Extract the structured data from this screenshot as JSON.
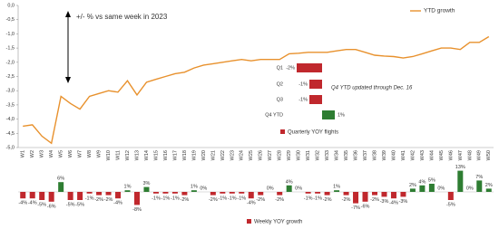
{
  "chart_data": [
    {
      "type": "line",
      "annotation": "+/- % vs same week in 2023",
      "categories": [
        "W1",
        "W2",
        "W3",
        "W4",
        "W5",
        "W6",
        "W7",
        "W8",
        "W9",
        "W10",
        "W11",
        "W12",
        "W13",
        "W14",
        "W15",
        "W16",
        "W17",
        "W18",
        "W19",
        "W20",
        "W21",
        "W22",
        "W23",
        "W24",
        "W25",
        "W26",
        "W27",
        "W28",
        "W29",
        "W30",
        "W31",
        "W32",
        "W33",
        "W34",
        "W35",
        "W36",
        "W37",
        "W38",
        "W39",
        "W40",
        "W41",
        "W42",
        "W43",
        "W44",
        "W45",
        "W46",
        "W47",
        "W48",
        "W49",
        "W50"
      ],
      "series": [
        {
          "name": "YTD growth",
          "color": "#e8912d",
          "values": [
            -4.25,
            -4.2,
            -4.6,
            -4.85,
            -3.2,
            -3.45,
            -3.65,
            -3.2,
            -3.1,
            -3.0,
            -3.05,
            -2.65,
            -3.15,
            -2.7,
            -2.6,
            -2.5,
            -2.4,
            -2.35,
            -2.2,
            -2.1,
            -2.05,
            -2.0,
            -1.95,
            -1.9,
            -1.95,
            -1.9,
            -1.9,
            -1.9,
            -1.7,
            -1.68,
            -1.65,
            -1.65,
            -1.65,
            -1.6,
            -1.55,
            -1.55,
            -1.65,
            -1.75,
            -1.78,
            -1.8,
            -1.85,
            -1.8,
            -1.7,
            -1.6,
            -1.5,
            -1.5,
            -1.55,
            -1.3,
            -1.3,
            -1.1
          ]
        }
      ],
      "ylim": [
        -5,
        0
      ],
      "yticks": [
        {
          "value": 0,
          "label": "0,0"
        },
        {
          "value": -0.5,
          "label": "-0,5"
        },
        {
          "value": -1,
          "label": "-1,0"
        },
        {
          "value": -1.5,
          "label": "-1,5"
        },
        {
          "value": -2,
          "label": "-2,0"
        },
        {
          "value": -2.5,
          "label": "-2,5"
        },
        {
          "value": -3,
          "label": "-3,0"
        },
        {
          "value": -3.5,
          "label": "-3,5"
        },
        {
          "value": -4,
          "label": "-4,0"
        },
        {
          "value": -4.5,
          "label": "-4,5"
        },
        {
          "value": -5,
          "label": "-5,0"
        }
      ],
      "legend": "top-right"
    },
    {
      "type": "hbar",
      "annotation": "Q4 YTD updated through Dec. 16",
      "categories": [
        "Q1",
        "Q2",
        "Q3",
        "Q4 YTD"
      ],
      "series": [
        {
          "name": "Quarterly YOY flights",
          "values": [
            -2,
            -1,
            -1,
            1
          ],
          "value_labels": [
            "-2%",
            "-1%",
            "-1%",
            "1%"
          ]
        }
      ],
      "negative_color": "#c0282d",
      "positive_color": "#2e7d32"
    },
    {
      "type": "bar",
      "series": [
        {
          "name": "Weekly YOY growth",
          "values": [
            -4,
            -4,
            -5,
            -6,
            6,
            -5,
            -5,
            -1,
            -2,
            -2,
            -4,
            1,
            -8,
            3,
            -1,
            -1,
            -1,
            -2,
            1,
            0,
            -2,
            -1,
            -1,
            -1,
            -4,
            -2,
            0,
            -2,
            4,
            0,
            -1,
            -1,
            -2,
            1,
            -2,
            -7,
            -6,
            -2,
            -3,
            -4,
            -3,
            2,
            4,
            5,
            0,
            -5,
            13,
            0,
            7,
            2
          ],
          "value_labels": [
            "-4%",
            "-4%",
            "-5%",
            "-6%",
            "6%",
            "-5%",
            "-5%",
            "-1%",
            "-2%",
            "-2%",
            "-4%",
            "1%",
            "-8%",
            "3%",
            "-1%",
            "-1%",
            "-1%",
            "-2%",
            "1%",
            "0%",
            "-2%",
            "-1%",
            "-1%",
            "-1%",
            "-4%",
            "-2%",
            "0%",
            "-2%",
            "4%",
            "0%",
            "-1%",
            "-1%",
            "-2%",
            "1%",
            "-2%",
            "-7%",
            "-6%",
            "-2%",
            "-3%",
            "-4%",
            "-3%",
            "2%",
            "4%",
            "5%",
            "0%",
            "-5%",
            "13%",
            "0%",
            "7%",
            "2%"
          ]
        }
      ],
      "negative_color": "#c0282d",
      "positive_color": "#2e7d32"
    }
  ]
}
